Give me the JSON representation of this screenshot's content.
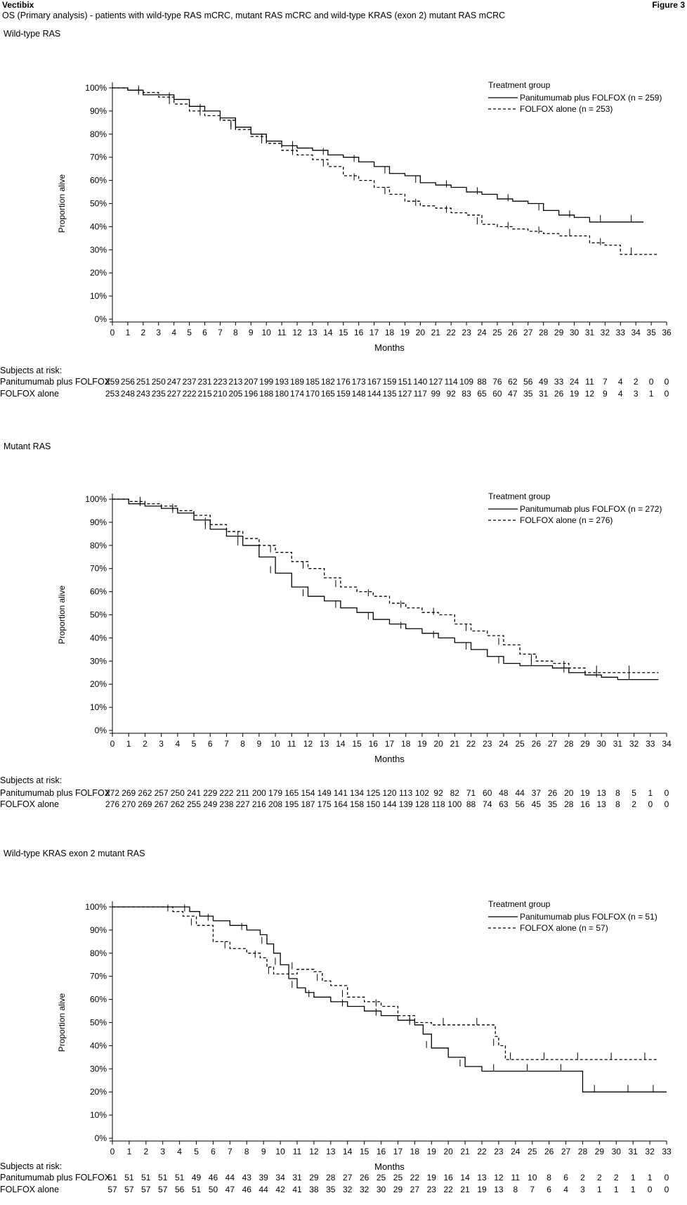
{
  "header": {
    "brand": "Vectibix",
    "figure": "Figure 3",
    "subtitle": "OS (Primary analysis) - patients with wild-type RAS mCRC, mutant RAS mCRC and wild-type KRAS (exon 2) mutant RAS mCRC"
  },
  "panels": [
    {
      "title": "Wild-type RAS",
      "legend_title": "Treatment group",
      "legend_solid": "Panitumumab plus FOLFOX (n = 259)",
      "legend_dashed": "FOLFOX alone (n = 253)",
      "risk_head": "Subjects at risk:",
      "risk_label_a": "Panitumumab plus FOLFOX",
      "risk_label_b": "FOLFOX alone"
    },
    {
      "title": "Mutant RAS",
      "legend_title": "Treatment group",
      "legend_solid": "Panitumumab plus FOLFOX (n = 272)",
      "legend_dashed": "FOLFOX alone (n = 276)",
      "risk_head": "Subjects at risk:",
      "risk_label_a": "Panitumumab plus FOLFOX",
      "risk_label_b": "FOLFOX alone"
    },
    {
      "title": "Wild-type KRAS exon 2 mutant RAS",
      "legend_title": "Treatment group",
      "legend_solid": "Panitumumab plus FOLFOX (n = 51)",
      "legend_dashed": "FOLFOX alone (n = 57)",
      "risk_head": "Subjects at risk:",
      "risk_label_a": "Panitumumab plus FOLFOX",
      "risk_label_b": "FOLFOX alone"
    }
  ],
  "chart_data": [
    {
      "type": "line",
      "title": "Wild-type RAS",
      "xlabel": "Months",
      "ylabel": "Proportion alive",
      "xlim": [
        0,
        36
      ],
      "ylim": [
        0,
        100
      ],
      "xticks": [
        0,
        1,
        2,
        3,
        4,
        5,
        6,
        7,
        8,
        9,
        10,
        11,
        12,
        13,
        14,
        15,
        16,
        17,
        18,
        19,
        20,
        21,
        22,
        23,
        24,
        25,
        26,
        27,
        28,
        29,
        30,
        31,
        32,
        33,
        34,
        35,
        36
      ],
      "yticks": [
        "0%",
        "10%",
        "20%",
        "30%",
        "40%",
        "50%",
        "60%",
        "70%",
        "80%",
        "90%",
        "100%"
      ],
      "series": [
        {
          "name": "Panitumumab plus FOLFOX (n = 259)",
          "style": "solid",
          "x": [
            0,
            1,
            2,
            3,
            4,
            5,
            6,
            7,
            8,
            9,
            10,
            11,
            12,
            13,
            14,
            15,
            16,
            17,
            18,
            19,
            20,
            21,
            22,
            23,
            24,
            25,
            26,
            27,
            28,
            29,
            30,
            31,
            32,
            33,
            34
          ],
          "y": [
            100,
            99,
            97,
            97,
            95,
            92,
            90,
            87,
            83,
            80,
            77,
            75,
            74,
            73,
            71,
            70,
            68,
            66,
            63,
            62,
            59,
            58,
            57,
            55,
            54,
            52,
            51,
            50,
            47,
            45,
            44,
            42,
            42,
            42,
            42
          ]
        },
        {
          "name": "FOLFOX alone (n = 253)",
          "style": "dashed",
          "x": [
            0,
            1,
            2,
            3,
            4,
            5,
            6,
            7,
            8,
            9,
            10,
            11,
            12,
            13,
            14,
            15,
            16,
            17,
            18,
            19,
            20,
            21,
            22,
            23,
            24,
            25,
            26,
            27,
            28,
            29,
            30,
            31,
            32,
            33,
            34,
            35
          ],
          "y": [
            100,
            99,
            98,
            96,
            93,
            90,
            88,
            86,
            82,
            79,
            76,
            73,
            71,
            69,
            66,
            62,
            60,
            57,
            54,
            51,
            49,
            48,
            46,
            45,
            41,
            40,
            39,
            38,
            37,
            36,
            36,
            33,
            32,
            28,
            28,
            28
          ]
        }
      ],
      "at_risk": {
        "x": [
          0,
          1,
          2,
          3,
          4,
          5,
          6,
          7,
          8,
          9,
          10,
          11,
          12,
          13,
          14,
          15,
          16,
          17,
          18,
          19,
          20,
          21,
          22,
          23,
          24,
          25,
          26,
          27,
          28,
          29,
          30,
          31,
          32,
          33,
          34,
          35,
          36
        ],
        "Panitumumab plus FOLFOX": [
          "259",
          "256",
          "251",
          "250",
          "247",
          "237",
          "231",
          "223",
          "213",
          "207",
          "199",
          "193",
          "189",
          "185",
          "182",
          "176",
          "173",
          "167",
          "159",
          "151",
          "140",
          "127",
          "114",
          "109",
          "88",
          "76",
          "62",
          "56",
          "49",
          "33",
          "24",
          "11",
          "7",
          "4",
          "2",
          "0",
          "0"
        ],
        "FOLFOX alone": [
          "253",
          "248",
          "243",
          "235",
          "227",
          "222",
          "215",
          "210",
          "205",
          "196",
          "188",
          "180",
          "174",
          "170",
          "165",
          "159",
          "148",
          "144",
          "135",
          "127",
          "117",
          "99",
          "92",
          "83",
          "65",
          "60",
          "47",
          "35",
          "31",
          "26",
          "19",
          "12",
          "9",
          "4",
          "3",
          "1",
          "0"
        ]
      }
    },
    {
      "type": "line",
      "title": "Mutant RAS",
      "xlabel": "Months",
      "ylabel": "Proportion alive",
      "xlim": [
        0,
        34
      ],
      "ylim": [
        0,
        100
      ],
      "xticks": [
        0,
        1,
        2,
        3,
        4,
        5,
        6,
        7,
        8,
        9,
        10,
        11,
        12,
        13,
        14,
        15,
        16,
        17,
        18,
        19,
        20,
        21,
        22,
        23,
        24,
        25,
        26,
        27,
        28,
        29,
        30,
        31,
        32,
        33,
        34
      ],
      "yticks": [
        "0%",
        "10%",
        "20%",
        "30%",
        "40%",
        "50%",
        "60%",
        "70%",
        "80%",
        "90%",
        "100%"
      ],
      "series": [
        {
          "name": "Panitumumab plus FOLFOX (n = 272)",
          "style": "solid",
          "x": [
            0,
            1,
            2,
            3,
            4,
            5,
            6,
            7,
            8,
            9,
            10,
            11,
            12,
            13,
            14,
            15,
            16,
            17,
            18,
            19,
            20,
            21,
            22,
            23,
            24,
            25,
            26,
            27,
            28,
            29,
            30,
            31,
            32,
            33
          ],
          "y": [
            100,
            98,
            97,
            96,
            94,
            91,
            87,
            84,
            80,
            75,
            68,
            62,
            58,
            56,
            53,
            51,
            48,
            46,
            44,
            42,
            40,
            38,
            35,
            32,
            29,
            28,
            28,
            27,
            25,
            24,
            23,
            22,
            22,
            22
          ]
        },
        {
          "name": "FOLFOX alone (n = 276)",
          "style": "dashed",
          "x": [
            0,
            1,
            2,
            3,
            4,
            5,
            6,
            7,
            8,
            9,
            10,
            11,
            12,
            13,
            14,
            15,
            16,
            17,
            18,
            19,
            20,
            21,
            22,
            23,
            24,
            25,
            26,
            27,
            28,
            29,
            30,
            31,
            32,
            33
          ],
          "y": [
            100,
            99,
            98,
            97,
            95,
            93,
            89,
            86,
            83,
            80,
            77,
            73,
            70,
            66,
            62,
            60,
            58,
            55,
            53,
            51,
            50,
            46,
            43,
            41,
            37,
            33,
            30,
            29,
            27,
            25,
            25,
            25,
            25,
            25
          ]
        }
      ],
      "at_risk": {
        "x": [
          0,
          1,
          2,
          3,
          4,
          5,
          6,
          7,
          8,
          9,
          10,
          11,
          12,
          13,
          14,
          15,
          16,
          17,
          18,
          19,
          20,
          21,
          22,
          23,
          24,
          25,
          26,
          27,
          28,
          29,
          30,
          31,
          32,
          33,
          34
        ],
        "Panitumumab plus FOLFOX": [
          "272",
          "269",
          "262",
          "257",
          "250",
          "241",
          "229",
          "222",
          "211",
          "200",
          "179",
          "165",
          "154",
          "149",
          "141",
          "134",
          "125",
          "120",
          "113",
          "102",
          "92",
          "82",
          "71",
          "60",
          "48",
          "44",
          "37",
          "26",
          "20",
          "19",
          "13",
          "8",
          "5",
          "1",
          "0"
        ],
        "FOLFOX alone": [
          "276",
          "270",
          "269",
          "267",
          "262",
          "255",
          "249",
          "238",
          "227",
          "216",
          "208",
          "195",
          "187",
          "175",
          "164",
          "158",
          "150",
          "144",
          "139",
          "128",
          "118",
          "100",
          "88",
          "74",
          "63",
          "56",
          "45",
          "35",
          "28",
          "16",
          "13",
          "8",
          "2",
          "0",
          "0"
        ]
      }
    },
    {
      "type": "line",
      "title": "Wild-type KRAS exon 2 mutant RAS",
      "xlabel": "Months",
      "ylabel": "Proportion alive",
      "xlim": [
        0,
        33
      ],
      "ylim": [
        0,
        100
      ],
      "xticks": [
        0,
        1,
        2,
        3,
        4,
        5,
        6,
        7,
        8,
        9,
        10,
        11,
        12,
        13,
        14,
        15,
        16,
        17,
        18,
        19,
        20,
        21,
        22,
        23,
        24,
        25,
        26,
        27,
        28,
        29,
        30,
        31,
        32,
        33
      ],
      "yticks": [
        "0%",
        "10%",
        "20%",
        "30%",
        "40%",
        "50%",
        "60%",
        "70%",
        "80%",
        "90%",
        "100%"
      ],
      "series": [
        {
          "name": "Panitumumab plus FOLFOX (n = 51)",
          "style": "solid",
          "x": [
            0,
            4,
            4.6,
            5.2,
            6,
            7,
            8,
            8.8,
            9.2,
            9.6,
            10,
            10.5,
            11,
            11.5,
            12,
            13,
            14,
            15,
            16,
            17,
            18,
            18.5,
            19,
            20,
            21,
            22,
            23,
            24,
            25,
            26,
            27,
            28,
            29,
            30,
            31,
            32,
            32.5
          ],
          "y": [
            100,
            100,
            98,
            96,
            94,
            92,
            90,
            88,
            84,
            80,
            75,
            69,
            65,
            63,
            61,
            59,
            57,
            55,
            53,
            51,
            49,
            45,
            39,
            35,
            31,
            29,
            29,
            29,
            29,
            29,
            29,
            20,
            20,
            20,
            20,
            20,
            20
          ]
        },
        {
          "name": "FOLFOX alone (n = 57)",
          "style": "dashed",
          "x": [
            0,
            3,
            3.6,
            4.2,
            5,
            6,
            7,
            8,
            8.8,
            9.2,
            9.6,
            10,
            11,
            12,
            12.5,
            13,
            14,
            15,
            16,
            17,
            18,
            19,
            20,
            21,
            22,
            22.8,
            23,
            23.4,
            24,
            25,
            26,
            27,
            28,
            29,
            30,
            31,
            32
          ],
          "y": [
            100,
            100,
            98,
            96,
            92,
            85,
            82,
            80,
            78,
            74,
            71,
            71,
            73,
            72,
            68,
            66,
            61,
            59,
            57,
            53,
            50,
            49,
            49,
            49,
            49,
            44,
            40,
            34,
            34,
            34,
            34,
            34,
            34,
            34,
            34,
            34,
            34
          ]
        }
      ],
      "at_risk": {
        "x": [
          0,
          1,
          2,
          3,
          4,
          5,
          6,
          7,
          8,
          9,
          10,
          11,
          12,
          13,
          14,
          15,
          16,
          17,
          18,
          19,
          20,
          21,
          22,
          23,
          24,
          25,
          26,
          27,
          28,
          29,
          30,
          31,
          32,
          33
        ],
        "Panitumumab plus FOLFOX": [
          "51",
          "51",
          "51",
          "51",
          "51",
          "49",
          "46",
          "44",
          "43",
          "39",
          "34",
          "31",
          "29",
          "28",
          "27",
          "26",
          "25",
          "25",
          "22",
          "19",
          "16",
          "14",
          "13",
          "12",
          "11",
          "10",
          "8",
          "6",
          "2",
          "2",
          "2",
          "1",
          "1",
          "0"
        ],
        "FOLFOX alone": [
          "57",
          "57",
          "57",
          "57",
          "56",
          "51",
          "50",
          "47",
          "46",
          "44",
          "42",
          "41",
          "38",
          "35",
          "32",
          "32",
          "30",
          "29",
          "27",
          "23",
          "22",
          "21",
          "19",
          "13",
          "8",
          "7",
          "6",
          "4",
          "3",
          "1",
          "1",
          "1",
          "0",
          "0"
        ]
      }
    }
  ]
}
